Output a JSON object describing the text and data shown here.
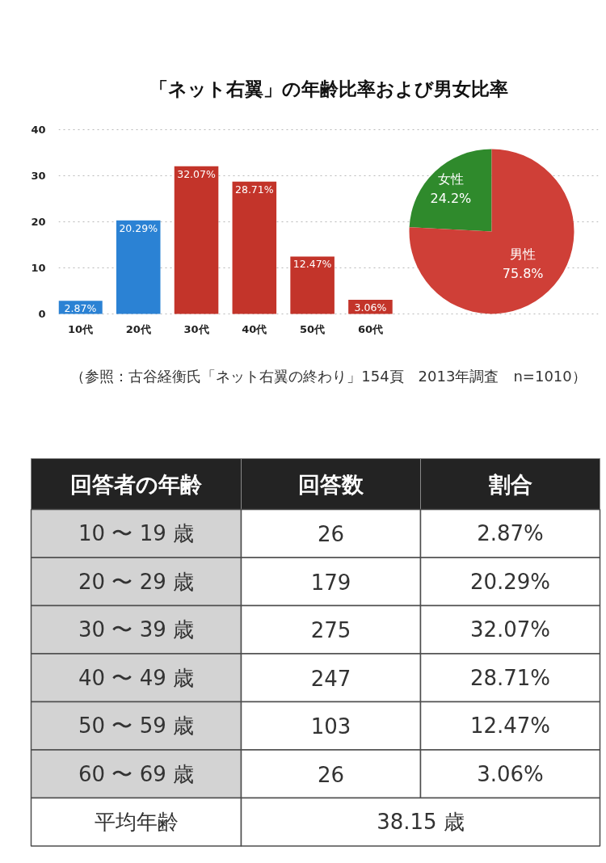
{
  "chart_data": [
    {
      "type": "bar",
      "title": "「ネット右翼」の年齢比率および男女比率",
      "categories": [
        "10代",
        "20代",
        "30代",
        "40代",
        "50代",
        "60代"
      ],
      "values": [
        2.87,
        20.29,
        32.07,
        28.71,
        12.47,
        3.06
      ],
      "colors": [
        "#2b82d4",
        "#2b82d4",
        "#c3342a",
        "#c3342a",
        "#c3342a",
        "#c3342a"
      ],
      "value_labels": [
        "2.87%",
        "20.29%",
        "32.07%",
        "28.71%",
        "12.47%",
        "3.06%"
      ],
      "ylim": [
        0,
        40
      ],
      "yticks": [
        0,
        10,
        20,
        30,
        40
      ],
      "grid": "y",
      "annotations": [
        "（参照：古谷経衡氏「ネット右翼の終わり」154頁　2013年調査　n=1010）"
      ]
    },
    {
      "type": "pie",
      "categories": [
        "女性",
        "男性"
      ],
      "values": [
        24.2,
        75.8
      ],
      "colors": [
        "#2f8a2c",
        "#cf3f37"
      ],
      "value_labels": [
        "24.2%",
        "75.8%"
      ]
    },
    {
      "type": "other",
      "xlabel": "回答者の年齢",
      "categories": [
        "10 〜 19 歳",
        "20 〜 29 歳",
        "30 〜 39 歳",
        "40 〜 49 歳",
        "50 〜 59 歳",
        "60 〜 69 歳"
      ],
      "series": [
        {
          "name": "回答数",
          "values": [
            26,
            179,
            275,
            247,
            103,
            26
          ]
        },
        {
          "name": "割合",
          "values": [
            2.87,
            20.29,
            32.07,
            28.71,
            12.47,
            3.06
          ],
          "value_labels": [
            "2.87%",
            "20.29%",
            "32.07%",
            "28.71%",
            "12.47%",
            "3.06%"
          ]
        }
      ],
      "data_labels": true,
      "annotations": [
        "平均年齢",
        "38.15 歳"
      ]
    }
  ]
}
